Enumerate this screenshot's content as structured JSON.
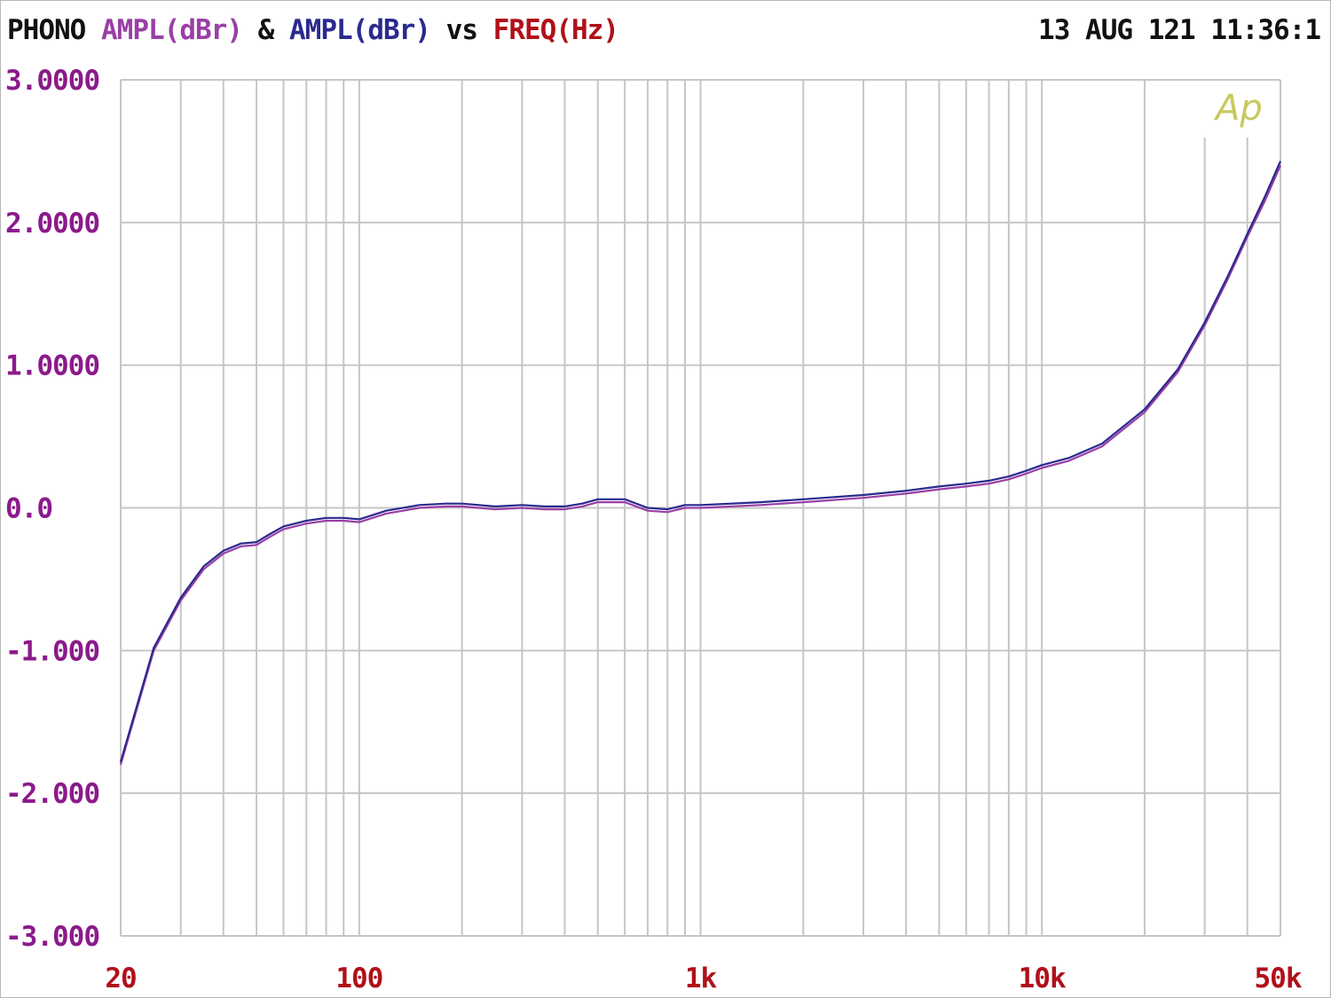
{
  "header": {
    "device": "PHONO",
    "series1_label": "AMPL(dBr)",
    "amp": "&",
    "series2_label": "AMPL(dBr)",
    "vs": "vs",
    "xaxis_label": "FREQ(Hz)",
    "timestamp": "13 AUG 121 11:36:1",
    "logo": "Ap"
  },
  "colors": {
    "series1": "#9a3fa6",
    "series2": "#2a2a8f",
    "device": "#111111",
    "xaxis": "#b0101a",
    "grid": "#c6c6c6"
  },
  "chart_data": {
    "type": "line",
    "title": "PHONO AMPL(dBr) & AMPL(dBr) vs FREQ(Hz)",
    "xlabel": "FREQ(Hz)",
    "ylabel": "AMPL(dBr)",
    "xscale": "log",
    "xlim": [
      20,
      50000
    ],
    "ylim": [
      -3,
      3
    ],
    "grid": true,
    "x_tick_labels": [
      {
        "value": 20,
        "label": "20"
      },
      {
        "value": 100,
        "label": "100"
      },
      {
        "value": 1000,
        "label": "1k"
      },
      {
        "value": 10000,
        "label": "10k"
      },
      {
        "value": 50000,
        "label": "50k"
      }
    ],
    "y_tick_labels": [
      {
        "value": 3,
        "label": "3.0000"
      },
      {
        "value": 2,
        "label": "2.0000"
      },
      {
        "value": 1,
        "label": "1.0000"
      },
      {
        "value": 0,
        "label": "0.0"
      },
      {
        "value": -1,
        "label": "-1.000"
      },
      {
        "value": -2,
        "label": "-2.000"
      },
      {
        "value": -3,
        "label": "-3.000"
      }
    ],
    "x": [
      20,
      25,
      30,
      35,
      40,
      45,
      50,
      55,
      60,
      70,
      80,
      90,
      100,
      120,
      150,
      180,
      200,
      250,
      300,
      350,
      400,
      450,
      500,
      550,
      600,
      700,
      800,
      900,
      1000,
      1500,
      2000,
      3000,
      4000,
      5000,
      6000,
      7000,
      8000,
      9000,
      10000,
      12000,
      15000,
      20000,
      25000,
      30000,
      35000,
      40000,
      45000,
      50000
    ],
    "series": [
      {
        "values": [
          -1.8,
          -1.0,
          -0.65,
          -0.43,
          -0.32,
          -0.27,
          -0.26,
          -0.2,
          -0.15,
          -0.11,
          -0.09,
          -0.09,
          -0.1,
          -0.04,
          0.0,
          0.01,
          0.01,
          -0.01,
          0.0,
          -0.01,
          -0.01,
          0.01,
          0.04,
          0.04,
          0.04,
          -0.02,
          -0.03,
          0.0,
          0.0,
          0.02,
          0.04,
          0.07,
          0.1,
          0.13,
          0.15,
          0.17,
          0.2,
          0.24,
          0.28,
          0.33,
          0.43,
          0.67,
          0.95,
          1.28,
          1.6,
          1.9,
          2.15,
          2.4
        ]
      },
      {
        "values": [
          -1.78,
          -0.98,
          -0.63,
          -0.41,
          -0.3,
          -0.25,
          -0.24,
          -0.18,
          -0.13,
          -0.09,
          -0.07,
          -0.07,
          -0.08,
          -0.02,
          0.02,
          0.03,
          0.03,
          0.01,
          0.02,
          0.01,
          0.01,
          0.03,
          0.06,
          0.06,
          0.06,
          0.0,
          -0.01,
          0.02,
          0.02,
          0.04,
          0.06,
          0.09,
          0.12,
          0.15,
          0.17,
          0.19,
          0.22,
          0.26,
          0.3,
          0.35,
          0.45,
          0.69,
          0.97,
          1.3,
          1.62,
          1.92,
          2.18,
          2.43
        ]
      }
    ]
  }
}
